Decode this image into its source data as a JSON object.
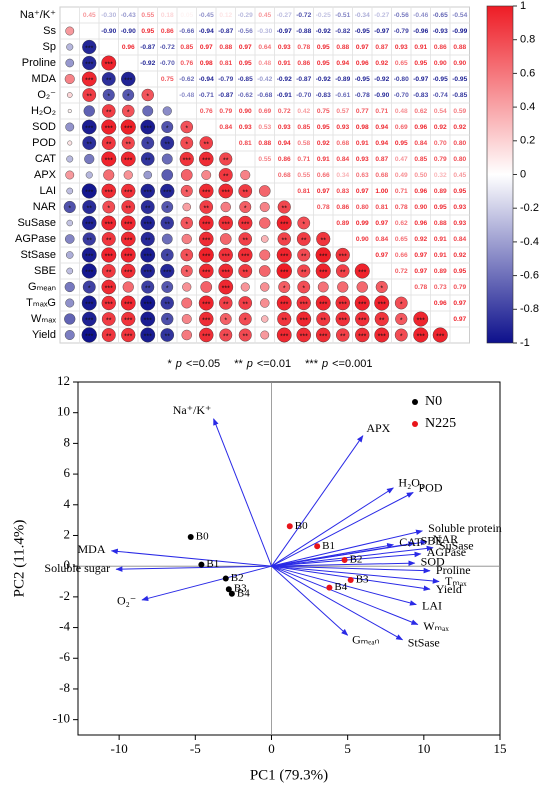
{
  "chart_data": [
    {
      "type": "heatmap",
      "labels": [
        "Na⁺/K⁺",
        "Ss",
        "Sp",
        "Proline",
        "MDA",
        "O₂⁻",
        "H₂O₂",
        "SOD",
        "POD",
        "CAT",
        "APX",
        "LAI",
        "NAR",
        "SuSase",
        "AGPase",
        "StSase",
        "SBE",
        "Gₘₑₐₙ",
        "TₘₐₓG",
        "Wₘₐₓ",
        "Yield"
      ],
      "matrix": [
        [
          0.45,
          -0.3,
          -0.43,
          0.55,
          0.18,
          0.05,
          -0.45,
          0.12,
          -0.29,
          0.45,
          -0.27,
          -0.72,
          -0.25,
          -0.51,
          -0.34,
          -0.27,
          -0.56,
          -0.46,
          -0.65,
          -0.54
        ],
        [
          -0.9,
          -0.9,
          0.95,
          0.86,
          -0.66,
          -0.94,
          -0.87,
          -0.56,
          -0.3,
          -0.97,
          -0.88,
          -0.92,
          -0.82,
          -0.95,
          -0.97,
          -0.79,
          -0.96,
          -0.93,
          -0.99
        ],
        [
          0.96,
          -0.87,
          -0.72,
          0.85,
          0.97,
          0.88,
          0.97,
          0.64,
          0.93,
          0.78,
          0.95,
          0.88,
          0.97,
          0.87,
          0.93,
          0.91,
          0.86,
          0.88
        ],
        [
          -0.92,
          -0.7,
          0.76,
          0.98,
          0.81,
          0.95,
          0.48,
          0.91,
          0.86,
          0.95,
          0.94,
          0.96,
          0.92,
          0.65,
          0.95,
          0.9,
          0.9
        ],
        [
          0.75,
          -0.62,
          -0.94,
          -0.79,
          -0.85,
          -0.42,
          -0.92,
          -0.87,
          -0.92,
          -0.89,
          -0.95,
          -0.92,
          -0.8,
          -0.97,
          -0.95,
          -0.95
        ],
        [
          -0.48,
          -0.71,
          -0.87,
          -0.62,
          -0.68,
          -0.91,
          -0.7,
          -0.83,
          -0.61,
          -0.78,
          -0.9,
          -0.7,
          -0.83,
          -0.74,
          -0.85
        ],
        [
          0.76,
          0.79,
          0.9,
          0.69,
          0.72,
          0.42,
          0.75,
          0.57,
          0.77,
          0.71,
          0.48,
          0.62,
          0.54,
          0.59
        ],
        [
          0.84,
          0.93,
          0.53,
          0.93,
          0.85,
          0.95,
          0.93,
          0.98,
          0.94,
          0.69,
          0.96,
          0.92,
          0.92
        ],
        [
          0.81,
          0.88,
          0.94,
          0.58,
          0.92,
          0.68,
          0.91,
          0.94,
          0.95,
          0.84,
          0.7,
          0.8
        ],
        [
          0.55,
          0.86,
          0.71,
          0.91,
          0.84,
          0.93,
          0.87,
          0.47,
          0.85,
          0.79,
          0.8
        ],
        [
          0.68,
          0.55,
          0.66,
          0.34,
          0.63,
          0.68,
          0.49,
          0.5,
          0.32,
          0.45
        ],
        [
          0.81,
          0.97,
          0.83,
          0.97,
          1,
          0.71,
          0.96,
          0.89,
          0.95
        ],
        [
          0.78,
          0.86,
          0.8,
          0.81,
          0.78,
          0.9,
          0.95,
          0.93
        ],
        [
          0.89,
          0.99,
          0.97,
          0.62,
          0.96,
          0.88,
          0.93
        ],
        [
          0.9,
          0.84,
          0.65,
          0.92,
          0.91,
          0.84
        ],
        [
          0.97,
          0.66,
          0.97,
          0.91,
          0.92
        ],
        [
          0.72,
          0.97,
          0.89,
          0.95
        ],
        [
          0.78,
          0.73,
          0.79
        ],
        [
          0.96,
          0.97
        ],
        [
          0.97
        ]
      ],
      "value_labels": [
        [
          "0.45",
          "-0.30",
          "-0.43",
          "0.55",
          "0.18",
          "0.05",
          "-0.45",
          "0.12",
          "-0.29",
          "0.45",
          "-0.27",
          "-0.72",
          "-0.25",
          "-0.51",
          "-0.34",
          "-0.27",
          "-0.56",
          "-0.46",
          "-0.65",
          "-0.54"
        ],
        [
          "-0.90",
          "-0.90",
          "0.95",
          "0.86",
          "-0.66",
          "-0.94",
          "-0.87",
          "-0.56",
          "-0.30",
          "-0.97",
          "-0.88",
          "-0.92",
          "-0.82",
          "-0.95",
          "-0.97",
          "-0.79",
          "-0.96",
          "-0.93",
          "-0.99"
        ],
        [
          "0.96",
          "-0.87",
          "-0.72",
          "0.85",
          "0.97",
          "0.88",
          "0.97",
          "0.64",
          "0.93",
          "0.78",
          "0.95",
          "0.88",
          "0.97",
          "0.87",
          "0.93",
          "0.91",
          "0.86",
          "0.88"
        ],
        [
          "-0.92",
          "-0.70",
          "0.76",
          "0.98",
          "0.81",
          "0.95",
          "0.48",
          "0.91",
          "0.86",
          "0.95",
          "0.94",
          "0.96",
          "0.92",
          "0.65",
          "0.95",
          "0.90",
          "0.90"
        ],
        [
          "0.75",
          "-0.62",
          "-0.94",
          "-0.79",
          "-0.85",
          "-0.42",
          "-0.92",
          "-0.87",
          "-0.92",
          "-0.89",
          "-0.95",
          "-0.92",
          "-0.80",
          "-0.97",
          "-0.95",
          "-0.95"
        ],
        [
          "-0.48",
          "-0.71",
          "-0.87",
          "-0.62",
          "-0.68",
          "-0.91",
          "-0.70",
          "-0.83",
          "-0.61",
          "-0.78",
          "-0.90",
          "-0.70",
          "-0.83",
          "-0.74",
          "-0.85"
        ],
        [
          "0.76",
          "0.79",
          "0.90",
          "0.69",
          "0.72",
          "0.42",
          "0.75",
          "0.57",
          "0.77",
          "0.71",
          "0.48",
          "0.62",
          "0.54",
          "0.59"
        ],
        [
          "0.84",
          "0.93",
          "0.53",
          "0.93",
          "0.85",
          "0.95",
          "0.93",
          "0.98",
          "0.94",
          "0.69",
          "0.96",
          "0.92",
          "0.92"
        ],
        [
          "0.81",
          "0.88",
          "0.94",
          "0.58",
          "0.92",
          "0.68",
          "0.91",
          "0.94",
          "0.95",
          "0.84",
          "0.70",
          "0.80"
        ],
        [
          "0.55",
          "0.86",
          "0.71",
          "0.91",
          "0.84",
          "0.93",
          "0.87",
          "0.47",
          "0.85",
          "0.79",
          "0.80"
        ],
        [
          "0.68",
          "0.55",
          "0.66",
          "0.34",
          "0.63",
          "0.68",
          "0.49",
          "0.50",
          "0.32",
          "0.45"
        ],
        [
          "0.81",
          "0.97",
          "0.83",
          "0.97",
          "1.00",
          "0.71",
          "0.96",
          "0.89",
          "0.95"
        ],
        [
          "0.78",
          "0.86",
          "0.80",
          "0.81",
          "0.78",
          "0.90",
          "0.95",
          "0.93"
        ],
        [
          "0.89",
          "0.99",
          "0.97",
          "0.62",
          "0.96",
          "0.88",
          "0.93"
        ],
        [
          "0.90",
          "0.84",
          "0.65",
          "0.92",
          "0.91",
          "0.84"
        ],
        [
          "0.97",
          "0.66",
          "0.97",
          "0.91",
          "0.92"
        ],
        [
          "0.72",
          "0.97",
          "0.89",
          "0.95"
        ],
        [
          "0.78",
          "0.73",
          "0.79"
        ],
        [
          "0.96",
          "0.97"
        ],
        [
          "0.97"
        ]
      ],
      "colors": {
        "negative": "#0d108c",
        "zero": "#ffffff",
        "positive": "#ee1c25"
      },
      "clim": [
        -1,
        1
      ],
      "colorbar_ticks": [
        1,
        0.8,
        0.6,
        0.4,
        0.2,
        0,
        -0.2,
        -0.4,
        -0.6,
        -0.8,
        -1
      ],
      "significance": [
        {
          "symbol": "*",
          "p": "p",
          "threshold": "<=0.05"
        },
        {
          "symbol": "**",
          "p": "p",
          "threshold": "<=0.01"
        },
        {
          "symbol": "***",
          "p": "p",
          "threshold": "<=0.001"
        }
      ]
    },
    {
      "type": "biplot",
      "xlabel": "PC1 (79.3%)",
      "ylabel": "PC2 (11.4%)",
      "xlim": [
        -12.7,
        15
      ],
      "ylim": [
        -11,
        12
      ],
      "xticks": [
        -10,
        -5,
        0,
        5,
        10,
        15
      ],
      "yticks": [
        -10,
        -8,
        -6,
        -4,
        -2,
        0,
        2,
        4,
        6,
        8,
        10,
        12
      ],
      "legend": "upper right",
      "arrow_color": "#2a2ae6",
      "series": [
        {
          "name": "N0",
          "color": "#000000",
          "labels": [
            "B0",
            "B1",
            "B2",
            "B3",
            "B4"
          ],
          "x": [
            -5.3,
            -4.6,
            -3.0,
            -2.8,
            -2.6
          ],
          "y": [
            1.9,
            0.1,
            -0.8,
            -1.5,
            -1.8
          ]
        },
        {
          "name": "N225",
          "color": "#e8141a",
          "labels": [
            "B0",
            "B1",
            "B2",
            "B3",
            "B4"
          ],
          "x": [
            1.2,
            3.0,
            4.8,
            5.2,
            3.8
          ],
          "y": [
            2.6,
            1.3,
            0.4,
            -0.9,
            -1.4
          ]
        }
      ],
      "loadings": [
        {
          "name": "Na⁺/K⁺",
          "x": -3.8,
          "y": 9.6
        },
        {
          "name": "APX",
          "x": 6.0,
          "y": 8.5
        },
        {
          "name": "H₂O₂",
          "x": 8.0,
          "y": 5.1
        },
        {
          "name": "POD",
          "x": 9.3,
          "y": 4.8
        },
        {
          "name": "Soluble protein",
          "x": 9.9,
          "y": 2.3
        },
        {
          "name": "NAR",
          "x": 10.2,
          "y": 1.6
        },
        {
          "name": "SuSase",
          "x": 10.6,
          "y": 1.2
        },
        {
          "name": "AGPase",
          "x": 9.8,
          "y": 0.8
        },
        {
          "name": "SBE",
          "x": 9.4,
          "y": 1.5
        },
        {
          "name": "CAT",
          "x": 8.0,
          "y": 1.4
        },
        {
          "name": "SOD",
          "x": 9.4,
          "y": 0.2
        },
        {
          "name": "Proline",
          "x": 10.4,
          "y": -0.3
        },
        {
          "name": "Tₘₐₓ",
          "x": 11.0,
          "y": -1.0
        },
        {
          "name": "Yield",
          "x": 10.4,
          "y": -1.5
        },
        {
          "name": "LAI",
          "x": 9.5,
          "y": -2.5
        },
        {
          "name": "Wₘₐₓ",
          "x": 9.6,
          "y": -3.8
        },
        {
          "name": "StSase",
          "x": 8.6,
          "y": -4.8
        },
        {
          "name": "Gₘₑₐₙ",
          "x": 5.0,
          "y": -4.5
        },
        {
          "name": "MDA",
          "x": -10.5,
          "y": 1.0
        },
        {
          "name": "Soluble sugar",
          "x": -10.2,
          "y": -0.2
        },
        {
          "name": "O₂⁻",
          "x": -8.5,
          "y": -2.2
        }
      ]
    }
  ]
}
